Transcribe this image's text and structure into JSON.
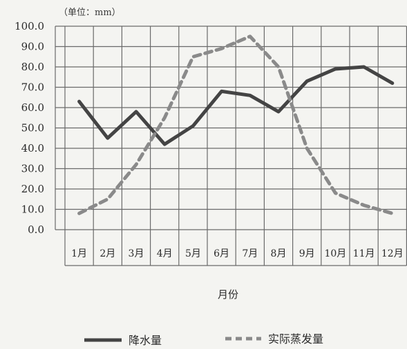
{
  "chart_data": {
    "type": "line",
    "unit_label": "（单位：mm）",
    "xlabel": "月份",
    "ylabel": "",
    "ylim": [
      0,
      100
    ],
    "y_ticks": [
      "100.0",
      "90.0",
      "80.0",
      "70.0",
      "60.0",
      "50.0",
      "40.0",
      "30.0",
      "20.0",
      "10.0",
      "0.0"
    ],
    "categories": [
      "1月",
      "2月",
      "3月",
      "4月",
      "5月",
      "6月",
      "7月",
      "8月",
      "9月",
      "10月",
      "11月",
      "12月"
    ],
    "grid": true,
    "legend_position": "bottom",
    "series": [
      {
        "name": "降水量",
        "style": "solid",
        "color": "#444444",
        "values": [
          63,
          45,
          58,
          42,
          51,
          68,
          66,
          58,
          73,
          79,
          80,
          72
        ]
      },
      {
        "name": "实际蒸发量",
        "style": "dashed",
        "color": "#8a8a8a",
        "values": [
          8,
          15,
          32,
          55,
          85,
          89,
          95,
          80,
          40,
          18,
          12,
          8
        ]
      }
    ]
  }
}
